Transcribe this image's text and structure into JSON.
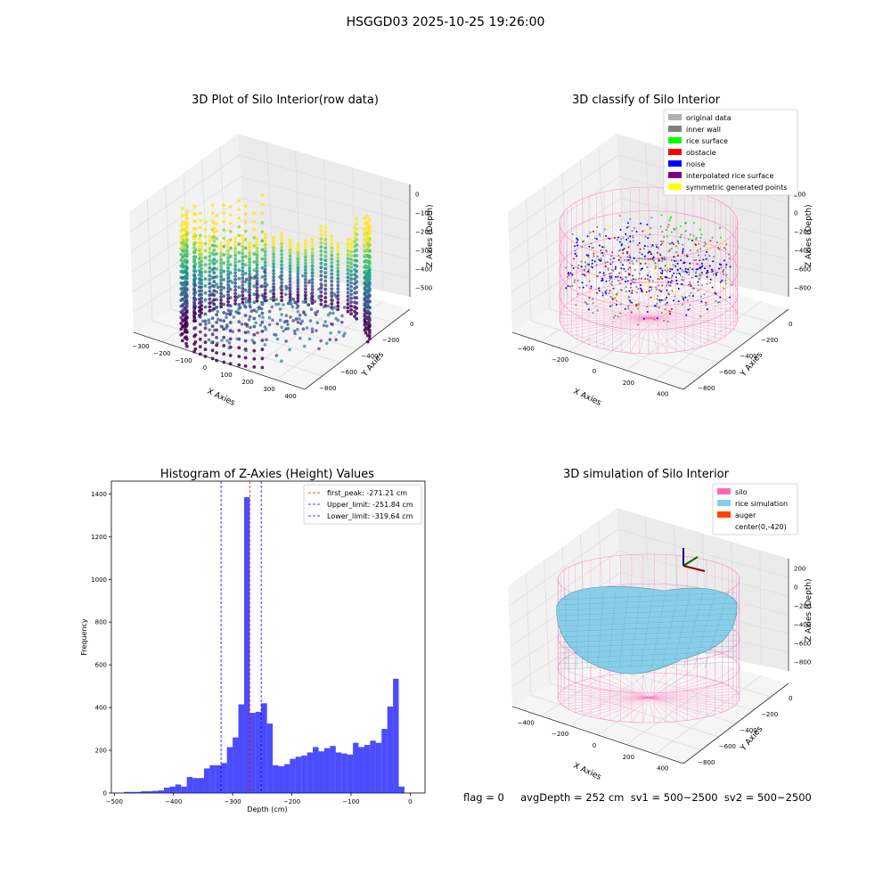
{
  "suptitle": "HSGGD03 2025-10-25 19:26:00",
  "footer": "flag = 0     avgDepth = 252 cm  sv1 = 500~2500  sv2 = 500~2500",
  "colors": {
    "viridis": [
      "#440154",
      "#46327e",
      "#365c8d",
      "#277f8e",
      "#1fa187",
      "#4ac16d",
      "#a0da39",
      "#fde725"
    ],
    "silo": "#ff69b4",
    "rice": "#87ceeb",
    "auger": "#ff4500",
    "hist": "#0000ff"
  },
  "panel1": {
    "title": "3D Plot of Silo Interior(row data)",
    "xlabel": "X Axies",
    "ylabel": "Y Axies",
    "zlabel": "Z Axies (Depth)",
    "xticks": [
      "−300",
      "−200",
      "−100",
      "0",
      "100",
      "200",
      "300",
      "400"
    ],
    "yticks": [
      "0",
      "−200",
      "−400",
      "−600",
      "−800"
    ],
    "zticks": [
      "0",
      "−100",
      "−200",
      "−300",
      "−400",
      "−500"
    ]
  },
  "panel2": {
    "title": "3D classify of Silo Interior",
    "xlabel": "X Axies",
    "ylabel": "Y Axies",
    "zlabel": "Z Axies (Depth)",
    "xticks": [
      "−400",
      "−200",
      "0",
      "200",
      "400"
    ],
    "yticks": [
      "0",
      "−200",
      "−400",
      "−600",
      "−800"
    ],
    "zticks": [
      "200",
      "0",
      "−200",
      "−400",
      "−600",
      "−800"
    ],
    "legend": [
      {
        "label": "original data",
        "color": "#b0b0b0"
      },
      {
        "label": "inner wall",
        "color": "#808080"
      },
      {
        "label": "rice surface",
        "color": "#00ff00"
      },
      {
        "label": "obstacle",
        "color": "#ff0000"
      },
      {
        "label": "noise",
        "color": "#0000ff"
      },
      {
        "label": "interpolated rice surface",
        "color": "#800080"
      },
      {
        "label": "symmetric generated points",
        "color": "#ffff00"
      }
    ]
  },
  "panel4": {
    "title": "3D simulation of Silo Interior",
    "xlabel": "X Axies",
    "ylabel": "Y Axies",
    "zlabel": "Z Axies (Depth)",
    "xticks": [
      "−400",
      "−200",
      "0",
      "200",
      "400"
    ],
    "yticks": [
      "0",
      "−200",
      "−400",
      "−600",
      "−800"
    ],
    "zticks": [
      "200",
      "0",
      "−200",
      "−400",
      "−600",
      "−800"
    ],
    "legend": [
      {
        "label": "silo",
        "color": "#ff69b4"
      },
      {
        "label": "rice simulation",
        "color": "#87ceeb"
      },
      {
        "label": "auger",
        "color": "#ff4500"
      },
      {
        "label": "center(0,-420)",
        "color": "none"
      }
    ]
  },
  "chart_data": {
    "type": "bar",
    "title": "Histogram of Z-Axies (Height) Values",
    "xlabel": "Depth (cm)",
    "ylabel": "Frequency",
    "xlim": [
      -505,
      25
    ],
    "ylim": [
      0,
      1460
    ],
    "xticks": [
      -500,
      -400,
      -300,
      -200,
      -100,
      0
    ],
    "yticks": [
      0,
      200,
      400,
      600,
      800,
      1000,
      1200,
      1400
    ],
    "bin_start": -484,
    "bin_width": 9.68,
    "values": [
      5,
      5,
      5,
      8,
      8,
      10,
      12,
      25,
      30,
      40,
      30,
      75,
      70,
      70,
      115,
      130,
      130,
      140,
      215,
      260,
      415,
      1385,
      375,
      380,
      420,
      325,
      130,
      125,
      135,
      160,
      170,
      175,
      190,
      215,
      195,
      210,
      220,
      190,
      185,
      180,
      235,
      215,
      225,
      245,
      235,
      300,
      405,
      535,
      30
    ],
    "annotations": [
      {
        "label": "first_peak: -271.21 cm",
        "x": -271.21,
        "color": "#ff0000"
      },
      {
        "label": "Upper_limit: -251.84 cm",
        "x": -251.84,
        "color": "#0000ff"
      },
      {
        "label": "Lower_limit: -319.64 cm",
        "x": -319.64,
        "color": "#0000ff"
      }
    ],
    "legend_placement": "top-right"
  }
}
